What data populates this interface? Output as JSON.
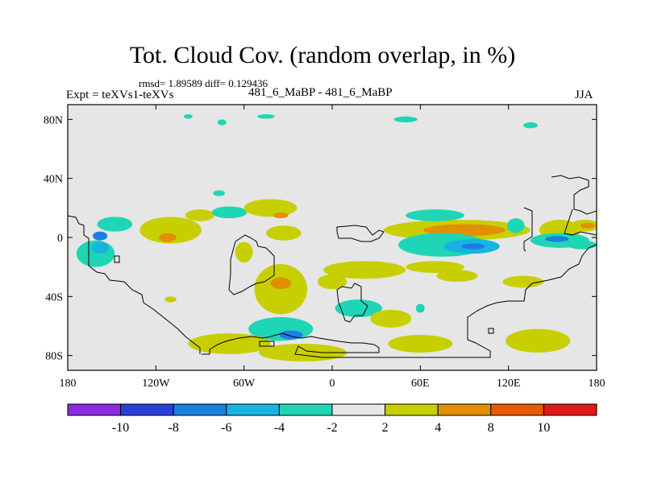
{
  "header": {
    "title": "Tot. Cloud Cov. (random overlap, in %)",
    "stats": "rmsd= 1.89589 diff= 0.129436",
    "expt": "Expt = teXVs1-teXVs",
    "subtitle": "481_6_MaBP - 481_6_MaBP",
    "season": "JJA"
  },
  "colors": {
    "background": "#e6e6e6",
    "frame": "#000000",
    "coastline": "#000000"
  },
  "chart_data": {
    "type": "heatmap",
    "title": "Tot. Cloud Cov. (random overlap, in %)",
    "xlim": [
      -180,
      180
    ],
    "ylim": [
      -90,
      90
    ],
    "x_ticks": [
      {
        "value": -180,
        "label": "180"
      },
      {
        "value": -120,
        "label": "120W"
      },
      {
        "value": -60,
        "label": "60W"
      },
      {
        "value": 0,
        "label": "0"
      },
      {
        "value": 60,
        "label": "60E"
      },
      {
        "value": 120,
        "label": "120E"
      },
      {
        "value": 180,
        "label": "180"
      }
    ],
    "y_ticks": [
      {
        "value": 80,
        "label": "80N"
      },
      {
        "value": 40,
        "label": "40N"
      },
      {
        "value": 0,
        "label": "0"
      },
      {
        "value": -40,
        "label": "40S"
      },
      {
        "value": -80,
        "label": "80S"
      }
    ],
    "levels": [
      "-10",
      "-8",
      "-6",
      "-4",
      "-2",
      "2",
      "4",
      "8",
      "10"
    ],
    "colorbar": [
      "#8a2be2",
      "#2a3fd6",
      "#1a7fe0",
      "#17b4e0",
      "#1ed6b6",
      "#e6e6e6",
      "#c8cf00",
      "#e09000",
      "#e85a00",
      "#e01a1a"
    ],
    "anomalies": [
      {
        "lon": -148,
        "lat": 9,
        "rlon": 12,
        "rlat": 5,
        "level": 4
      },
      {
        "lon": -158,
        "lat": 1,
        "rlon": 5,
        "rlat": 3,
        "level": 2
      },
      {
        "lon": -161,
        "lat": -11,
        "rlon": 13,
        "rlat": 9,
        "level": 4
      },
      {
        "lon": -158,
        "lat": -7,
        "rlon": 6,
        "rlat": 4,
        "level": 3
      },
      {
        "lon": -110,
        "lat": 5,
        "rlon": 21,
        "rlat": 9,
        "level": 6
      },
      {
        "lon": -112,
        "lat": 0,
        "rlon": 6,
        "rlat": 3,
        "level": 7
      },
      {
        "lon": -90,
        "lat": 15,
        "rlon": 10,
        "rlat": 4,
        "level": 6
      },
      {
        "lon": -70,
        "lat": 17,
        "rlon": 12,
        "rlat": 4,
        "level": 4
      },
      {
        "lon": -77,
        "lat": 30,
        "rlon": 4,
        "rlat": 2,
        "level": 4
      },
      {
        "lon": -60,
        "lat": -10,
        "rlon": 6,
        "rlat": 7,
        "level": 6
      },
      {
        "lon": -42,
        "lat": 20,
        "rlon": 18,
        "rlat": 6,
        "level": 6
      },
      {
        "lon": -35,
        "lat": 15,
        "rlon": 5,
        "rlat": 2,
        "level": 7
      },
      {
        "lon": -33,
        "lat": 3,
        "rlon": 12,
        "rlat": 5,
        "level": 6
      },
      {
        "lon": -35,
        "lat": -35,
        "rlon": 18,
        "rlat": 17,
        "level": 6
      },
      {
        "lon": -35,
        "lat": -31,
        "rlon": 7,
        "rlat": 4,
        "level": 7
      },
      {
        "lon": 0,
        "lat": -30,
        "rlon": 10,
        "rlat": 5,
        "level": 6
      },
      {
        "lon": -35,
        "lat": -62,
        "rlon": 22,
        "rlat": 8,
        "level": 4
      },
      {
        "lon": -28,
        "lat": -66,
        "rlon": 8,
        "rlat": 3,
        "level": 2
      },
      {
        "lon": 22,
        "lat": -22,
        "rlon": 28,
        "rlat": 6,
        "level": 6
      },
      {
        "lon": 18,
        "lat": -48,
        "rlon": 16,
        "rlat": 6,
        "level": 4
      },
      {
        "lon": 40,
        "lat": -55,
        "rlon": 14,
        "rlat": 6,
        "level": 6
      },
      {
        "lon": -70,
        "lat": -72,
        "rlon": 28,
        "rlat": 7,
        "level": 6
      },
      {
        "lon": -20,
        "lat": -78,
        "rlon": 30,
        "rlat": 6,
        "level": 6
      },
      {
        "lon": 60,
        "lat": -72,
        "rlon": 22,
        "rlat": 6,
        "level": 6
      },
      {
        "lon": 140,
        "lat": -70,
        "rlon": 22,
        "rlat": 8,
        "level": 6
      },
      {
        "lon": 70,
        "lat": -20,
        "rlon": 20,
        "rlat": 4,
        "level": 6
      },
      {
        "lon": 85,
        "lat": -26,
        "rlon": 14,
        "rlat": 4,
        "level": 6
      },
      {
        "lon": 130,
        "lat": -30,
        "rlon": 14,
        "rlat": 4,
        "level": 6
      },
      {
        "lon": 85,
        "lat": 5,
        "rlon": 50,
        "rlat": 7,
        "level": 6
      },
      {
        "lon": 90,
        "lat": 5,
        "rlon": 28,
        "rlat": 4,
        "level": 7
      },
      {
        "lon": 75,
        "lat": -5,
        "rlon": 30,
        "rlat": 8,
        "level": 4
      },
      {
        "lon": 95,
        "lat": -6,
        "rlon": 19,
        "rlat": 5,
        "level": 3
      },
      {
        "lon": 96,
        "lat": -6,
        "rlon": 8,
        "rlat": 2,
        "level": 2
      },
      {
        "lon": 70,
        "lat": 15,
        "rlon": 20,
        "rlat": 4,
        "level": 4
      },
      {
        "lon": 155,
        "lat": 5,
        "rlon": 14,
        "rlat": 7,
        "level": 6
      },
      {
        "lon": 155,
        "lat": -2,
        "rlon": 20,
        "rlat": 5,
        "level": 4
      },
      {
        "lon": 153,
        "lat": -1,
        "rlon": 8,
        "rlat": 2,
        "level": 2
      },
      {
        "lon": 172,
        "lat": 8,
        "rlon": 10,
        "rlat": 4,
        "level": 6
      },
      {
        "lon": 174,
        "lat": 8,
        "rlon": 5,
        "rlat": 2,
        "level": 7
      },
      {
        "lon": 170,
        "lat": -5,
        "rlon": 10,
        "rlat": 3,
        "level": 4
      },
      {
        "lon": 125,
        "lat": 8,
        "rlon": 6,
        "rlat": 5,
        "level": 4
      },
      {
        "lon": -75,
        "lat": 78,
        "rlon": 3,
        "rlat": 2,
        "level": 4
      },
      {
        "lon": -98,
        "lat": 82,
        "rlon": 3,
        "rlat": 1.5,
        "level": 4
      },
      {
        "lon": -45,
        "lat": 82,
        "rlon": 6,
        "rlat": 1.5,
        "level": 4
      },
      {
        "lon": 50,
        "lat": 80,
        "rlon": 8,
        "rlat": 2,
        "level": 4
      },
      {
        "lon": 135,
        "lat": 76,
        "rlon": 5,
        "rlat": 2,
        "level": 4
      },
      {
        "lon": -110,
        "lat": -42,
        "rlon": 4,
        "rlat": 2,
        "level": 6
      },
      {
        "lon": 60,
        "lat": -48,
        "rlon": 3,
        "rlat": 3,
        "level": 4
      }
    ]
  }
}
